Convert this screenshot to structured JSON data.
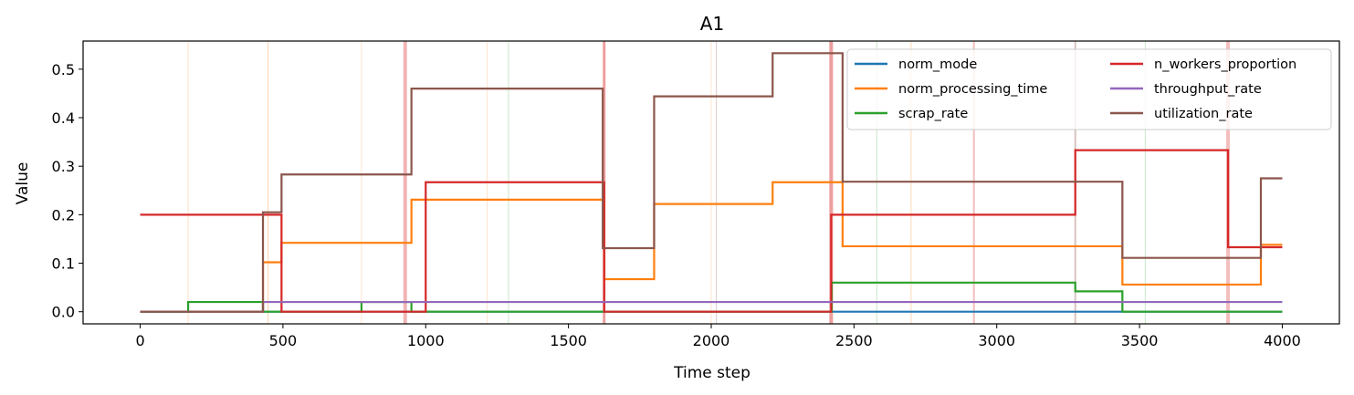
{
  "chart_data": {
    "type": "line",
    "title": "A1",
    "xlabel": "Time step",
    "ylabel": "Value",
    "xlim": [
      -200,
      4200
    ],
    "ylim": [
      -0.025,
      0.558
    ],
    "xticks": [
      0,
      500,
      1000,
      1500,
      2000,
      2500,
      3000,
      3500,
      4000
    ],
    "yticks": [
      0.0,
      0.1,
      0.2,
      0.3,
      0.4,
      0.5
    ],
    "xtick_labels": [
      "0",
      "500",
      "1000",
      "1500",
      "2000",
      "2500",
      "3000",
      "3500",
      "4000"
    ],
    "ytick_labels": [
      "0.0",
      "0.1",
      "0.2",
      "0.3",
      "0.4",
      "0.5"
    ],
    "step": true,
    "grid": false,
    "legend_position": "top-right",
    "series": [
      {
        "name": "norm_mode",
        "color": "#1f77b4",
        "x": [
          0,
          4000
        ],
        "y": [
          0,
          0
        ]
      },
      {
        "name": "norm_processing_time",
        "color": "#ff7f0e",
        "x": [
          0,
          430,
          495,
          950,
          1625,
          1800,
          2215,
          2460,
          3440,
          3925,
          4000
        ],
        "y": [
          0,
          0.102,
          0.142,
          0.231,
          0.067,
          0.222,
          0.267,
          0.135,
          0.056,
          0.138,
          0.138
        ]
      },
      {
        "name": "scrap_rate",
        "color": "#2ca02c",
        "x": [
          0,
          168,
          430,
          775,
          950,
          2422,
          3275,
          3440,
          4000
        ],
        "y": [
          0,
          0.02,
          0,
          0.02,
          0,
          0.06,
          0.042,
          0,
          0
        ]
      },
      {
        "name": "n_workers_proportion",
        "color": "#d62728",
        "x": [
          0,
          495,
          1000,
          1625,
          2420,
          3275,
          3810,
          4000
        ],
        "y": [
          0.2,
          0,
          0.267,
          0,
          0.2,
          0.333,
          0.133,
          0.133
        ]
      },
      {
        "name": "throughput_rate",
        "color": "#9467bd",
        "x": [
          0,
          430,
          4000
        ],
        "y": [
          0,
          0.02,
          0.02
        ]
      },
      {
        "name": "utilization_rate",
        "color": "#8c564b",
        "x": [
          0,
          430,
          495,
          950,
          1620,
          1800,
          2215,
          2460,
          3440,
          3925,
          4000
        ],
        "y": [
          0,
          0.205,
          0.283,
          0.46,
          0.131,
          0.444,
          0.533,
          0.268,
          0.111,
          0.275,
          0.275
        ]
      }
    ],
    "event_lines": [
      {
        "x": 168,
        "color": "#ff7f0e",
        "alpha": 0.25,
        "width": 1
      },
      {
        "x": 448,
        "color": "#ff7f0e",
        "alpha": 0.35,
        "width": 1
      },
      {
        "x": 775,
        "color": "#ff7f0e",
        "alpha": 0.2,
        "width": 1
      },
      {
        "x": 928,
        "color": "#d62728",
        "alpha": 0.35,
        "width": 4
      },
      {
        "x": 1215,
        "color": "#ff7f0e",
        "alpha": 0.2,
        "width": 1
      },
      {
        "x": 1290,
        "color": "#2ca02c",
        "alpha": 0.25,
        "width": 1
      },
      {
        "x": 1625,
        "color": "#d62728",
        "alpha": 0.45,
        "width": 3
      },
      {
        "x": 2000,
        "color": "#ff7f0e",
        "alpha": 0.2,
        "width": 1
      },
      {
        "x": 2018,
        "color": "#8c564b",
        "alpha": 0.3,
        "width": 1
      },
      {
        "x": 2420,
        "color": "#d62728",
        "alpha": 0.45,
        "width": 4
      },
      {
        "x": 2580,
        "color": "#2ca02c",
        "alpha": 0.25,
        "width": 1
      },
      {
        "x": 2700,
        "color": "#ff7f0e",
        "alpha": 0.3,
        "width": 1
      },
      {
        "x": 2920,
        "color": "#d62728",
        "alpha": 0.3,
        "width": 2
      },
      {
        "x": 3275,
        "color": "#8c564b",
        "alpha": 0.35,
        "width": 2
      },
      {
        "x": 3520,
        "color": "#2ca02c",
        "alpha": 0.25,
        "width": 1
      },
      {
        "x": 3810,
        "color": "#d62728",
        "alpha": 0.3,
        "width": 4
      }
    ]
  }
}
